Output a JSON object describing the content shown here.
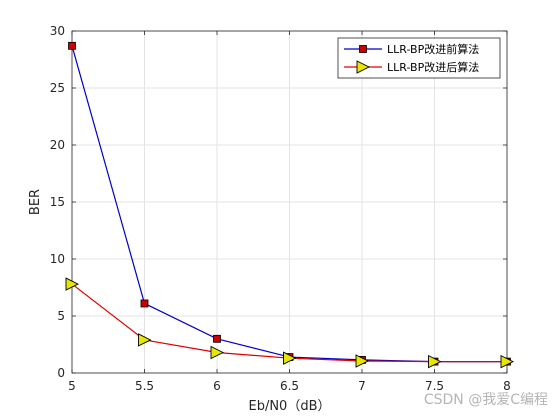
{
  "chart_data": {
    "type": "line",
    "title": "",
    "xlabel": "Eb/N0（dB）",
    "ylabel": "BER",
    "x": [
      5,
      5.5,
      6,
      6.5,
      7,
      7.5,
      8
    ],
    "xlim": [
      5,
      8
    ],
    "ylim": [
      0,
      30
    ],
    "xticks": [
      "5",
      "5.5",
      "6",
      "6.5",
      "7",
      "7.5",
      "8"
    ],
    "yticks": [
      "0",
      "5",
      "10",
      "15",
      "20",
      "25",
      "30"
    ],
    "grid": true,
    "legend_position": "top-right",
    "series": [
      {
        "name": "LLR-BP改进前算法",
        "values": [
          28.7,
          6.1,
          3.0,
          1.4,
          1.15,
          1.0,
          1.0
        ],
        "line_color": "#0000cc",
        "marker": "square",
        "marker_color": "#cc0000"
      },
      {
        "name": "LLR-BP改进后算法",
        "values": [
          7.8,
          2.9,
          1.8,
          1.3,
          1.05,
          1.0,
          1.0
        ],
        "line_color": "#e00000",
        "marker": "triangle-right",
        "marker_color": "#e6e600"
      }
    ]
  },
  "watermark": "CSDN @我爱C编程"
}
